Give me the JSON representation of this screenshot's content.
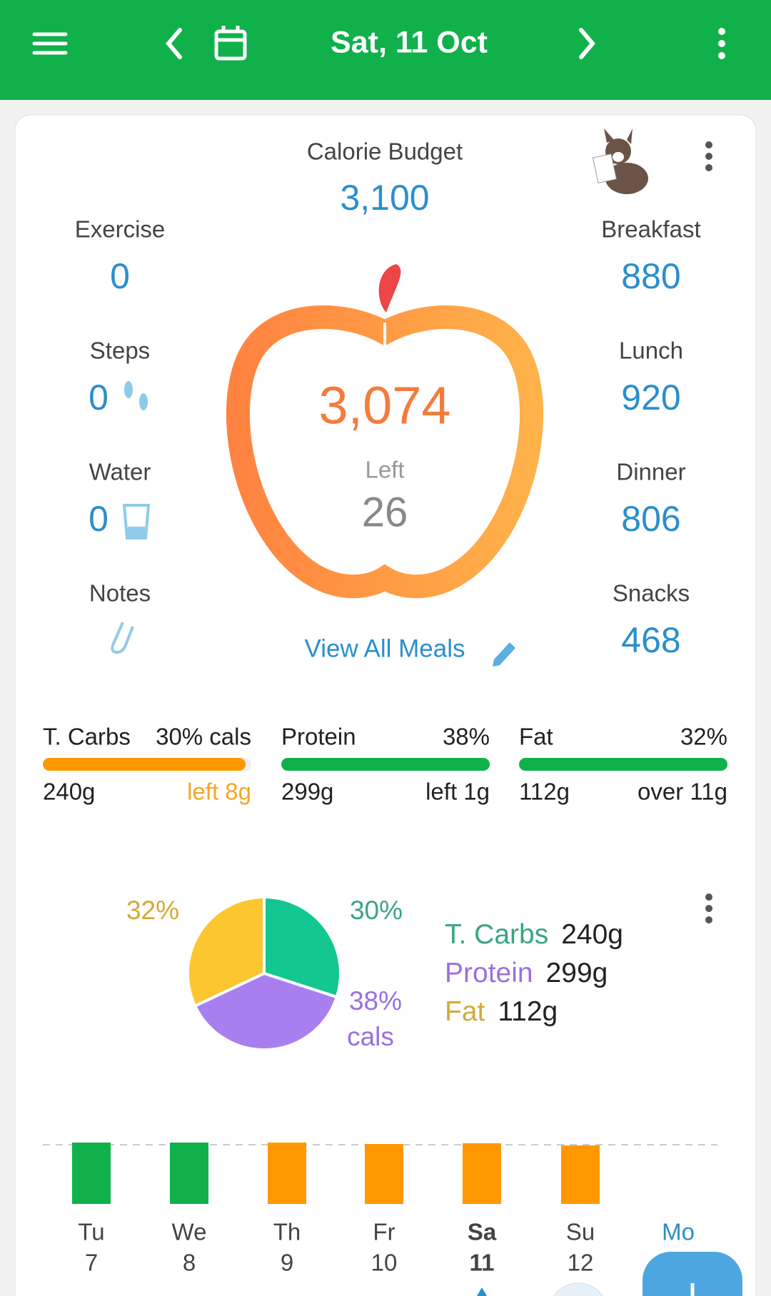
{
  "header": {
    "date": "Sat, 11 Oct"
  },
  "budget": {
    "label": "Calorie Budget",
    "value": "3,100"
  },
  "left_stats": [
    {
      "label": "Exercise",
      "value": "0"
    },
    {
      "label": "Steps",
      "value": "0"
    },
    {
      "label": "Water",
      "value": "0"
    },
    {
      "label": "Notes"
    }
  ],
  "meals": [
    {
      "label": "Breakfast",
      "value": "880"
    },
    {
      "label": "Lunch",
      "value": "920"
    },
    {
      "label": "Dinner",
      "value": "806"
    },
    {
      "label": "Snacks",
      "value": "468"
    }
  ],
  "center": {
    "consumed": "3,074",
    "left_label": "Left",
    "left_value": "26"
  },
  "view_all": "View All Meals",
  "macros": [
    {
      "name": "T. Carbs",
      "percent": "30% cals",
      "grams": "240g",
      "remaining": "left 8g"
    },
    {
      "name": "Protein",
      "percent": "38%",
      "grams": "299g",
      "remaining": "left 1g"
    },
    {
      "name": "Fat",
      "percent": "32%",
      "grams": "112g",
      "remaining": "over 11g"
    }
  ],
  "pie": {
    "type": "pie",
    "values": [
      30,
      38,
      32
    ],
    "value_labels": [
      "30%",
      "38%",
      "32%"
    ],
    "colors": [
      "#12c791",
      "#a97ff0",
      "#fcc630"
    ],
    "unit_label": "cals",
    "legend": [
      {
        "name": "T. Carbs",
        "amount": "240g"
      },
      {
        "name": "Protein",
        "amount": "299g"
      },
      {
        "name": "Fat",
        "amount": "112g"
      }
    ]
  },
  "week": [
    {
      "day": "Tu",
      "date": "7"
    },
    {
      "day": "We",
      "date": "8"
    },
    {
      "day": "Th",
      "date": "9"
    },
    {
      "day": "Fr",
      "date": "10"
    },
    {
      "day": "Sa",
      "date": "11"
    },
    {
      "day": "Su",
      "date": "12"
    },
    {
      "day": "Mo"
    }
  ]
}
